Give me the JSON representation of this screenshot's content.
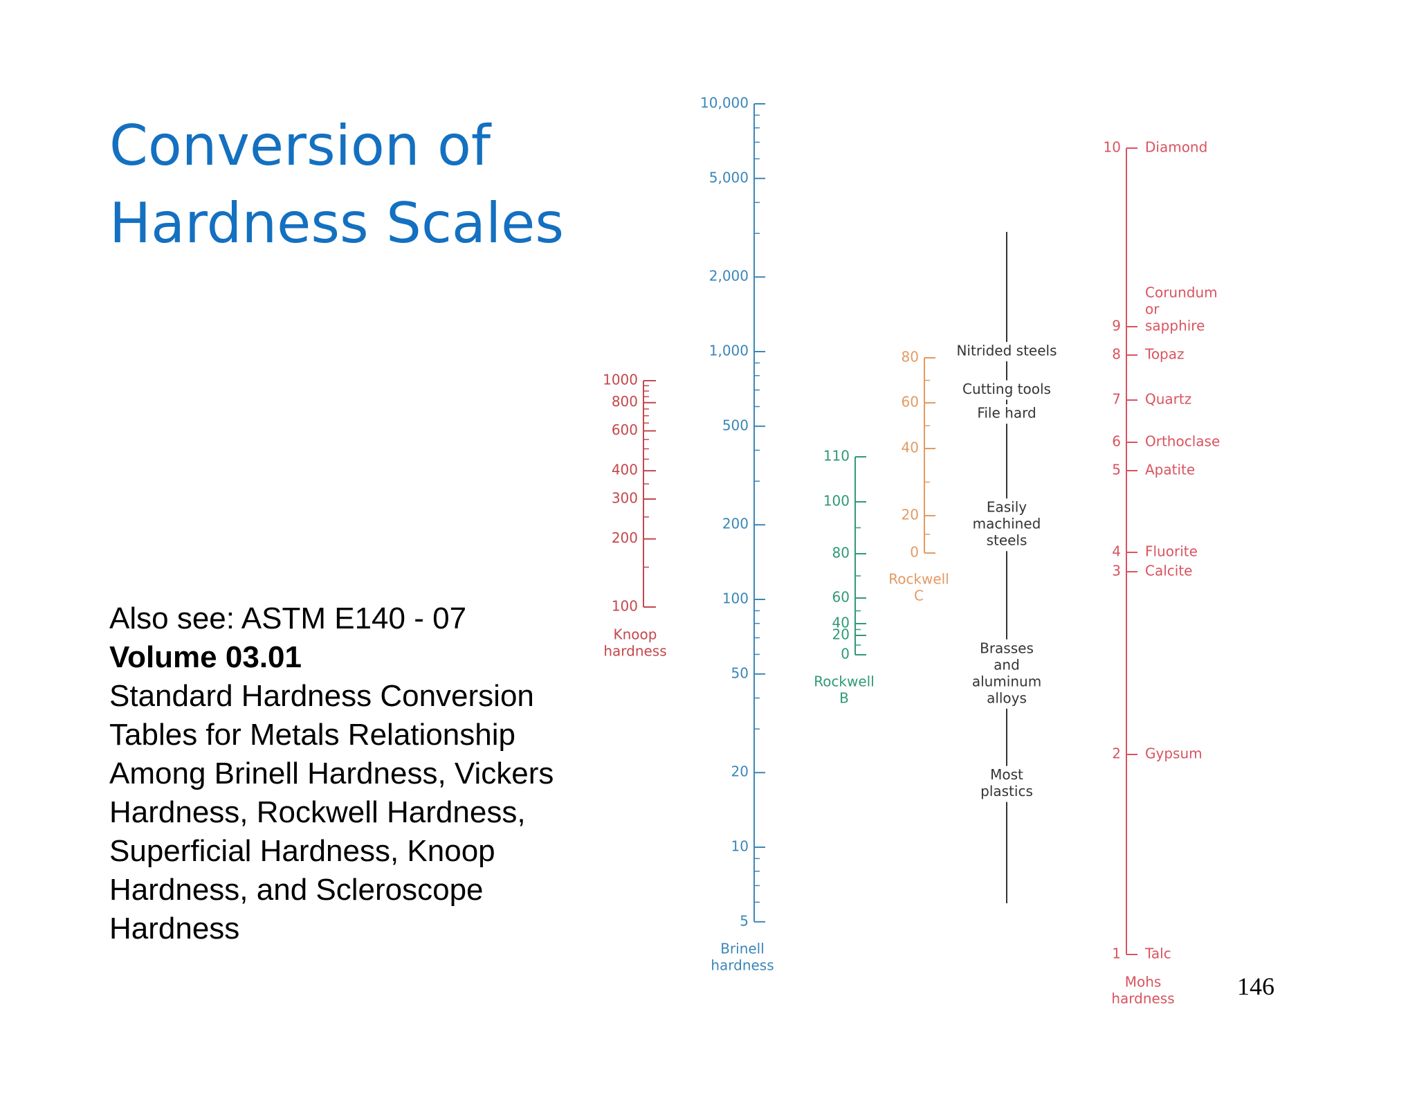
{
  "slide": {
    "title_line1": "Conversion of",
    "title_line2": "Hardness Scales",
    "ref_line1": "Also see:  ASTM E140 - 07",
    "ref_volume": "Volume 03.01",
    "ref_lines": [
      "Standard Hardness Conversion",
      "Tables for Metals Relationship",
      "Among Brinell Hardness, Vickers",
      "Hardness, Rockwell Hardness,",
      "Superficial Hardness, Knoop",
      "Hardness, and Scleroscope",
      "Hardness"
    ],
    "page_number": "146"
  },
  "colors": {
    "title": "#1470c0",
    "knoop": "#c4474c",
    "brinell": "#3a86b8",
    "rockwell_b": "#2e9a76",
    "rockwell_c": "#e39a62",
    "mohs": "#d9535f",
    "materials": "#333333"
  },
  "chart_data": {
    "type": "nomogram",
    "scales": {
      "knoop": {
        "name": [
          "Knoop",
          "hardness"
        ],
        "ticks": [
          {
            "label": "1000",
            "value": 1000
          },
          {
            "label": "800",
            "value": 800
          },
          {
            "label": "600",
            "value": 600
          },
          {
            "label": "400",
            "value": 400
          },
          {
            "label": "300",
            "value": 300
          },
          {
            "label": "200",
            "value": 200
          },
          {
            "label": "100",
            "value": 100
          }
        ]
      },
      "brinell": {
        "name": [
          "Brinell",
          "hardness"
        ],
        "ticks": [
          {
            "label": "10,000",
            "value": 10000
          },
          {
            "label": "5,000",
            "value": 5000
          },
          {
            "label": "2,000",
            "value": 2000
          },
          {
            "label": "1,000",
            "value": 1000
          },
          {
            "label": "500",
            "value": 500
          },
          {
            "label": "200",
            "value": 200
          },
          {
            "label": "100",
            "value": 100
          },
          {
            "label": "50",
            "value": 50
          },
          {
            "label": "20",
            "value": 20
          },
          {
            "label": "10",
            "value": 10
          },
          {
            "label": "5",
            "value": 5
          }
        ]
      },
      "rockwell_b": {
        "name": [
          "Rockwell",
          "B"
        ],
        "ticks": [
          {
            "label": "110",
            "value": 110
          },
          {
            "label": "100",
            "value": 100
          },
          {
            "label": "80",
            "value": 80
          },
          {
            "label": "60",
            "value": 60
          },
          {
            "label": "40",
            "value": 40
          },
          {
            "label": "20",
            "value": 20
          },
          {
            "label": "0",
            "value": 0
          }
        ]
      },
      "rockwell_c": {
        "name": [
          "Rockwell",
          "C"
        ],
        "ticks": [
          {
            "label": "80",
            "value": 80
          },
          {
            "label": "60",
            "value": 60
          },
          {
            "label": "40",
            "value": 40
          },
          {
            "label": "20",
            "value": 20
          },
          {
            "label": "0",
            "value": 0
          }
        ]
      },
      "mohs": {
        "name": [
          "Mohs",
          "hardness"
        ],
        "ticks": [
          {
            "label": "10",
            "value": 10,
            "mineral": [
              "Diamond"
            ]
          },
          {
            "label": "9",
            "value": 9,
            "mineral": [
              "Corundum",
              "or",
              "sapphire"
            ]
          },
          {
            "label": "8",
            "value": 8,
            "mineral": [
              "Topaz"
            ]
          },
          {
            "label": "7",
            "value": 7,
            "mineral": [
              "Quartz"
            ]
          },
          {
            "label": "6",
            "value": 6,
            "mineral": [
              "Orthoclase"
            ]
          },
          {
            "label": "5",
            "value": 5,
            "mineral": [
              "Apatite"
            ]
          },
          {
            "label": "4",
            "value": 4,
            "mineral": [
              "Fluorite"
            ]
          },
          {
            "label": "3",
            "value": 3,
            "mineral": [
              "Calcite"
            ]
          },
          {
            "label": "2",
            "value": 2,
            "mineral": [
              "Gypsum"
            ]
          },
          {
            "label": "1",
            "value": 1,
            "mineral": [
              "Talc"
            ]
          }
        ]
      }
    },
    "materials": [
      {
        "lines": [
          "Nitrided steels"
        ],
        "brinell": 1000
      },
      {
        "lines": [
          "Cutting tools"
        ],
        "brinell": 700
      },
      {
        "lines": [
          "File hard"
        ],
        "brinell": 560
      },
      {
        "lines": [
          "Easily",
          "machined",
          "steels"
        ],
        "brinell": 200
      },
      {
        "lines": [
          "Brasses",
          "and",
          "aluminum",
          "alloys"
        ],
        "brinell": 50
      },
      {
        "lines": [
          "Most",
          "plastics"
        ],
        "brinell": 18
      }
    ]
  }
}
